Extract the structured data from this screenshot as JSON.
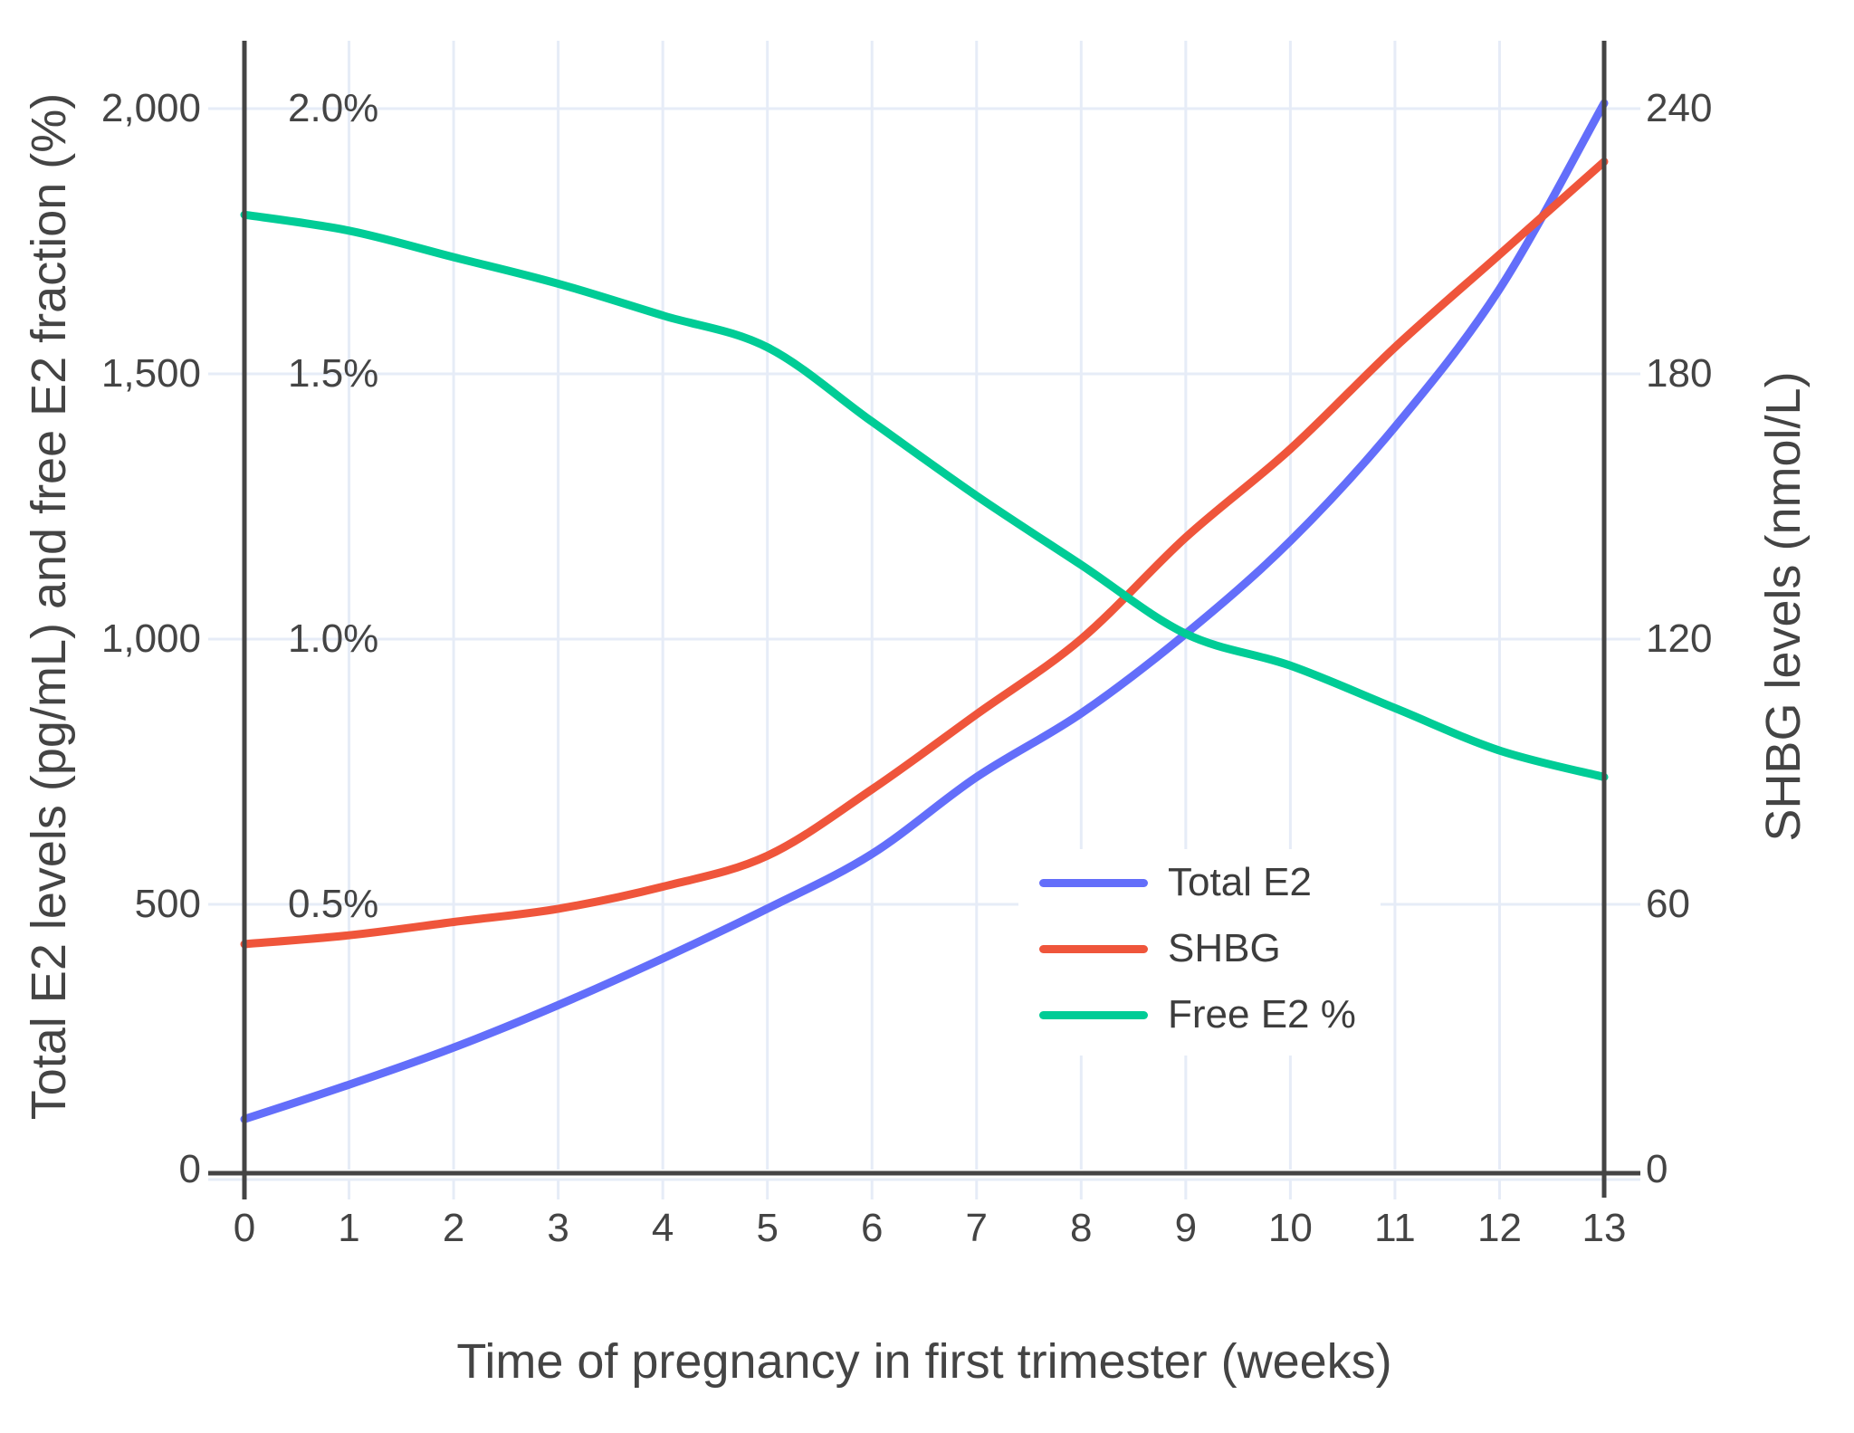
{
  "chart_data": {
    "type": "line",
    "title": "",
    "xlabel": "Time of pregnancy in first trimester (weeks)",
    "ylabel_left": "Total E2 levels (pg/mL) and free E2 fraction (%)",
    "ylabel_right": "SHBG levels (nmol/L)",
    "x": [
      0,
      1,
      2,
      3,
      4,
      5,
      6,
      7,
      8,
      9,
      10,
      11,
      12,
      13
    ],
    "x_tick_labels": [
      "0",
      "1",
      "2",
      "3",
      "4",
      "5",
      "6",
      "7",
      "8",
      "9",
      "10",
      "11",
      "12",
      "13"
    ],
    "xlim": [
      0,
      13
    ],
    "grid": true,
    "legend_position": "inside bottom-right",
    "left_axis": {
      "tick_labels": [
        "0",
        "500",
        "1,000",
        "1,500",
        "2,000"
      ],
      "tick_values": [
        0,
        500,
        1000,
        1500,
        2000
      ],
      "range": [
        0,
        2130
      ]
    },
    "left_pct_annotations": [
      {
        "label": "0.5%",
        "value": 500
      },
      {
        "label": "1.0%",
        "value": 1000
      },
      {
        "label": "1.5%",
        "value": 1500
      },
      {
        "label": "2.0%",
        "value": 2000
      }
    ],
    "right_axis": {
      "tick_labels": [
        "0",
        "60",
        "120",
        "180",
        "240"
      ],
      "tick_values": [
        0,
        60,
        120,
        180,
        240
      ],
      "range": [
        0,
        255
      ]
    },
    "series": [
      {
        "name": "Total E2",
        "color": "#636EFA",
        "axis": "left",
        "units": "pg/mL",
        "values": [
          95,
          160,
          230,
          310,
          398,
          492,
          595,
          740,
          860,
          1010,
          1185,
          1400,
          1660,
          2010
        ]
      },
      {
        "name": "SHBG",
        "color": "#EF553B",
        "axis": "right",
        "units": "nmol/L",
        "values": [
          51,
          53,
          56,
          59,
          64,
          71,
          86,
          103,
          120,
          143,
          163,
          186,
          207,
          228
        ]
      },
      {
        "name": "Free E2 %",
        "color": "#00CC96",
        "axis": "left-percent",
        "units": "%",
        "values": [
          1.8,
          1.77,
          1.72,
          1.67,
          1.61,
          1.55,
          1.41,
          1.27,
          1.14,
          1.01,
          0.95,
          0.87,
          0.79,
          0.74
        ]
      }
    ],
    "colors": {
      "grid": "#e6ecf7",
      "axis_line": "#444444",
      "text": "#444444"
    }
  }
}
